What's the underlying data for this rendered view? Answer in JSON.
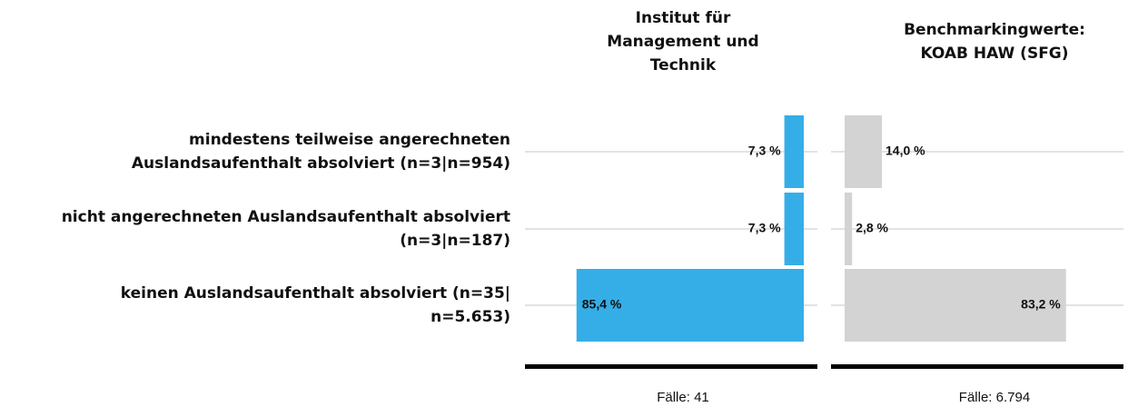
{
  "chart_data": {
    "type": "bar",
    "orientation": "horizontal",
    "categories": [
      "mindestens teilweise angerechneten\nAuslandsaufenthalt absolviert (n=3|n=954)",
      "nicht angerechneten Auslandsaufenthalt absolviert\n(n=3|n=187)",
      "keinen Auslandsaufenthalt absolviert (n=35|\nn=5.653)"
    ],
    "xlim": [
      0,
      100
    ],
    "series": [
      {
        "name": "Institut für\nManagement und\nTechnik",
        "color": "#35aee8",
        "values": [
          7.3,
          7.3,
          85.4
        ],
        "value_labels": [
          "7,3 %",
          "7,3 %",
          "85,4 %"
        ],
        "note": "Fälle: 41"
      },
      {
        "name": "Benchmarkingwerte:\nKOAB HAW (SFG)",
        "color": "#d3d3d3",
        "values": [
          14.0,
          2.8,
          83.2
        ],
        "value_labels": [
          "14,0 %",
          "2,8 %",
          "83,2 %"
        ],
        "note": "Fälle: 6.794"
      }
    ]
  }
}
